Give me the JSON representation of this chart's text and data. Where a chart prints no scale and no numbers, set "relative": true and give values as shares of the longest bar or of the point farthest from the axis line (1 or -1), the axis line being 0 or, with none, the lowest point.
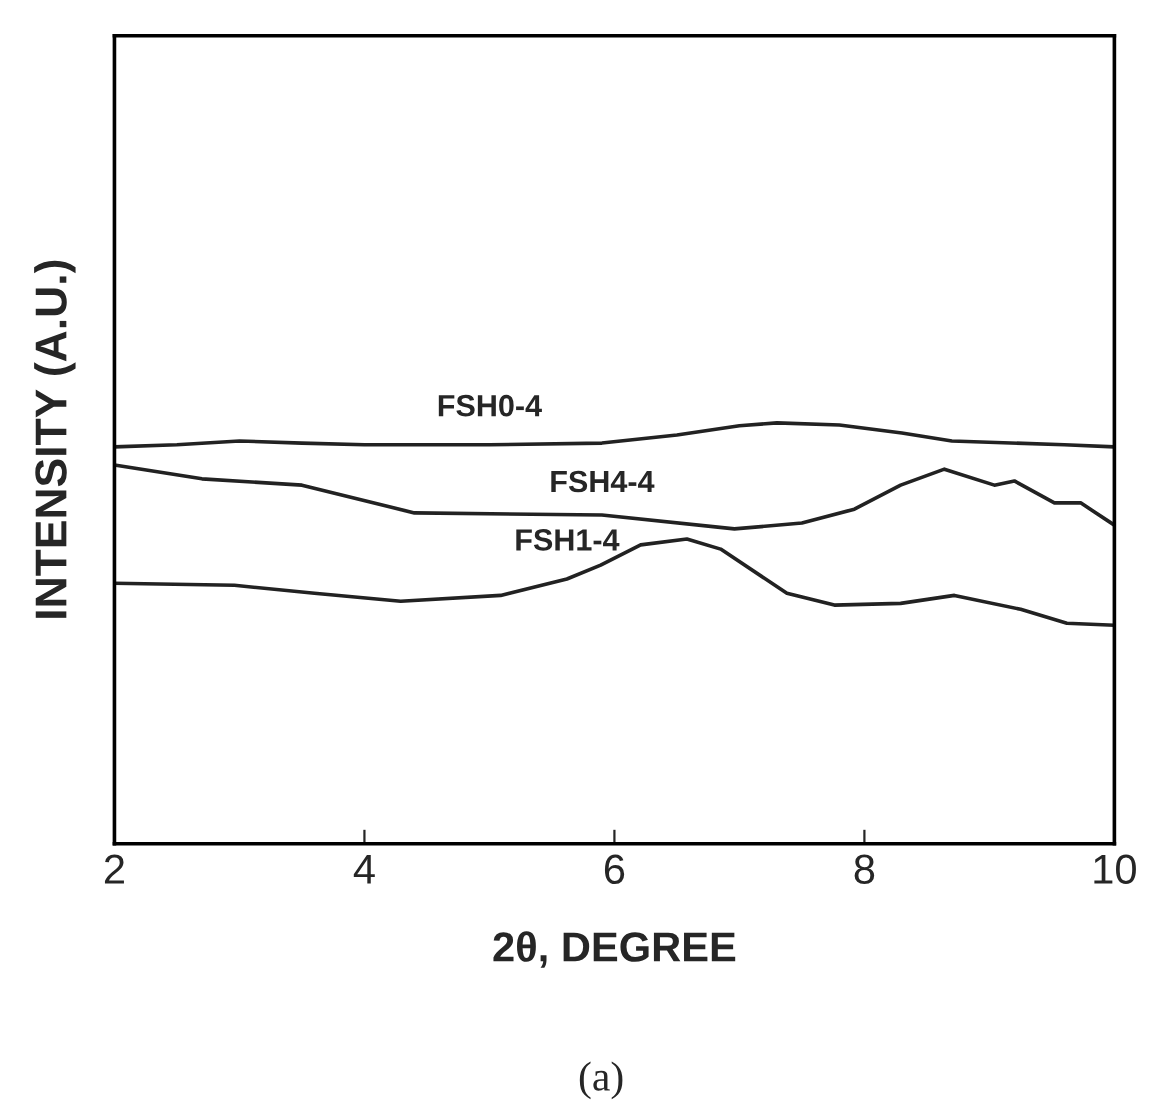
{
  "chart_data": {
    "type": "line",
    "relative": true,
    "xlabel": "2θ, DEGREE",
    "ylabel": "INTENSITY (A.U.)",
    "annotations": [
      "(a)"
    ],
    "xlim": [
      2,
      10
    ],
    "xticks": [
      2,
      4,
      6,
      8,
      10
    ],
    "tick_labels": "x",
    "grid": false,
    "legend": false,
    "marker": "none",
    "line_style": "solid",
    "series": [
      {
        "name": "FSH0-4",
        "color": "#222222",
        "x": [
          2,
          2.5,
          3,
          3.5,
          4,
          5,
          5.9,
          6.5,
          7.0,
          7.3,
          7.8,
          8.3,
          8.7,
          9.6,
          10
        ],
        "values": [
          0.943,
          0.948,
          0.957,
          0.952,
          0.948,
          0.948,
          0.952,
          0.971,
          0.993,
          1.0,
          0.995,
          0.976,
          0.957,
          0.948,
          0.943
        ]
      },
      {
        "name": "FSH4-4",
        "color": "#222222",
        "x": [
          2,
          2.7,
          3.5,
          4.4,
          5.9,
          6.96,
          7.5,
          7.92,
          8.29,
          8.64,
          9.04,
          9.2,
          9.52,
          9.73,
          10
        ],
        "values": [
          0.9,
          0.867,
          0.852,
          0.786,
          0.781,
          0.748,
          0.762,
          0.795,
          0.852,
          0.89,
          0.852,
          0.862,
          0.81,
          0.81,
          0.757
        ]
      },
      {
        "name": "FSH1-4",
        "color": "#222222",
        "x": [
          2,
          2.96,
          3.6,
          4.29,
          5.09,
          5.62,
          5.89,
          6.21,
          6.58,
          6.85,
          7.38,
          7.76,
          8.29,
          8.72,
          9.25,
          9.62,
          10
        ],
        "values": [
          0.619,
          0.614,
          0.595,
          0.576,
          0.59,
          0.629,
          0.662,
          0.71,
          0.724,
          0.7,
          0.595,
          0.567,
          0.571,
          0.59,
          0.557,
          0.524,
          0.519
        ]
      }
    ]
  }
}
